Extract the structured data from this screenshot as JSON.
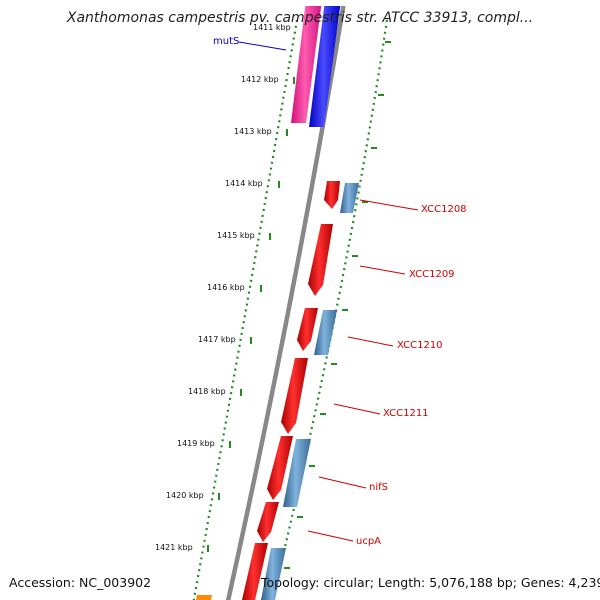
{
  "map": {
    "title": "Xanthomonas campestris pv. campestris str. ATCC 33913, compl...",
    "accession": "Accession: NC_003902",
    "stats": "Topology: circular; Length: 5,076,188 bp; Genes: 4,239"
  },
  "ticks": [
    "1411 kbp",
    "1412 kbp",
    "1413 kbp",
    "1414 kbp",
    "1415 kbp",
    "1416 kbp",
    "1417 kbp",
    "1418 kbp",
    "1419 kbp",
    "1420 kbp",
    "1421 kbp"
  ],
  "gene_labels": {
    "mutS": "mutS",
    "xcc1208": "XCC1208",
    "xcc1209": "XCC1209",
    "xcc1210": "XCC1210",
    "xcc1211": "XCC1211",
    "nifS": "nifS",
    "ucpA": "ucpA"
  },
  "colors": {
    "forward_cds": "#ee0000",
    "reverse_cds": "#4682b4",
    "mutS_forward": "#ff1493",
    "mutS_reverse": "#0000ff",
    "backbone": "#888888",
    "tick_dots": "#228b22",
    "label_red": "#cc0000",
    "label_blue": "#0000cc"
  }
}
